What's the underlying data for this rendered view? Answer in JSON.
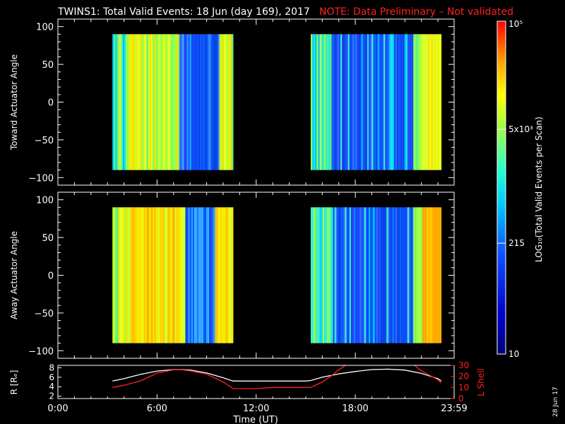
{
  "title": {
    "main": "TWINS1: Total Valid Events: 18 Jun (day 169), 2017",
    "note": "NOTE: Data Preliminary – Not validated",
    "note_color": "#ff2020"
  },
  "side_date": "28 Jun 17",
  "chart_data": [
    {
      "type": "heatmap",
      "ylabel": "Toward Actuator Angle",
      "ylim": [
        -110,
        110
      ],
      "yticks": [
        "100",
        "50",
        "0",
        "−50",
        "−100"
      ],
      "y_range": [
        -90,
        90
      ],
      "data_intervals_hours": [
        [
          3.3,
          10.6
        ],
        [
          15.3,
          23.2
        ]
      ],
      "zscale": "log",
      "dominant_colors": [
        "yellow/green 3.3–7.3 h",
        "blue 7.3–9.7 h",
        "yellow 9.7–10.6 h",
        "green/cyan 15.3–16.5 h",
        "blue 16.5–21.5 h",
        "yellow 21.5–23.2 h"
      ]
    },
    {
      "type": "heatmap",
      "ylabel": "Away Actuator Angle",
      "ylim": [
        -110,
        110
      ],
      "yticks": [
        "100",
        "50",
        "0",
        "−50",
        "−100"
      ],
      "y_range": [
        -90,
        90
      ],
      "data_intervals_hours": [
        [
          3.3,
          10.6
        ],
        [
          15.3,
          23.2
        ]
      ],
      "zscale": "log",
      "dominant_colors": [
        "yellow/orange 3.3–7.7 h",
        "blue 7.7–9.5 h",
        "yellow 9.5–10.6 h",
        "green/cyan 15.3–16.5 h",
        "blue 16.5–21.5 h",
        "orange 21.5–23.2 h"
      ]
    },
    {
      "type": "line",
      "ylabel_left": "R [Rₑ]",
      "ylabel_right": "L Shell",
      "ylim_left": [
        1.5,
        8.5
      ],
      "ylim_right": [
        0,
        30
      ],
      "left_ticks": [
        "8",
        "6",
        "4",
        "2"
      ],
      "right_ticks": [
        "30",
        "20",
        "10",
        "0"
      ],
      "xlabel": "Time (UT)",
      "xlim_hours": [
        0,
        23.98
      ],
      "xticks": [
        "0:00",
        "6:00",
        "12:00",
        "18:00",
        "23:59"
      ],
      "xtick_hours": [
        0,
        6,
        12,
        18,
        23.98
      ],
      "series": [
        {
          "name": "R",
          "axis": "left",
          "color": "#ffffff",
          "x": [
            3.3,
            4,
            5,
            6,
            7,
            7.5,
            8,
            9,
            10,
            10.6,
            11,
            12,
            13,
            14,
            15,
            15.3,
            16,
            17,
            18,
            19,
            20,
            21,
            22,
            23,
            23.2
          ],
          "y": [
            5.2,
            5.7,
            6.6,
            7.3,
            7.6,
            7.6,
            7.5,
            6.9,
            5.9,
            5.2,
            5.2,
            5.2,
            5.2,
            5.2,
            5.2,
            5.3,
            6.0,
            6.7,
            7.2,
            7.6,
            7.7,
            7.5,
            6.8,
            5.7,
            5.2
          ]
        },
        {
          "name": "L Shell",
          "axis": "right",
          "color": "#ff2020",
          "x": [
            3.3,
            4,
            5,
            6,
            7,
            7.5,
            8,
            9,
            10,
            10.6,
            11,
            12,
            13,
            14,
            15,
            15.3,
            16,
            16.5,
            17,
            17.5,
            21.5,
            22,
            23,
            23.2
          ],
          "y": [
            10,
            12,
            16,
            23,
            26,
            26,
            25,
            22,
            15,
            9,
            9,
            9,
            10,
            10,
            10,
            10,
            15,
            20,
            26,
            31,
            31,
            25,
            17,
            14
          ]
        }
      ]
    }
  ],
  "colorbar": {
    "label": "LOG₁₀(Total Valid Events per Scan)",
    "scale": "log",
    "range": [
      10,
      100000
    ],
    "ticks": [
      {
        "value": 100000,
        "label": "10⁵"
      },
      {
        "value": 5000,
        "label": "5x10³"
      },
      {
        "value": 215,
        "label": "215"
      },
      {
        "value": 10,
        "label": "10"
      }
    ]
  }
}
